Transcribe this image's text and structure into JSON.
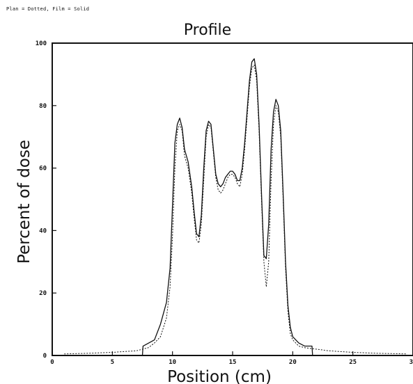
{
  "header_note": "Plan = Dotted, Film = Solid",
  "chart_data": {
    "type": "line",
    "title": "Profile",
    "xlabel": "Position (cm)",
    "ylabel": "Percent of dose",
    "xlim": [
      0,
      30
    ],
    "ylim": [
      0,
      100
    ],
    "x_ticks": [
      0,
      5,
      10,
      15,
      20,
      25,
      30
    ],
    "x_tick_labels": [
      "0",
      "5",
      "10",
      "15",
      "20",
      "25",
      "30"
    ],
    "y_ticks": [
      0,
      20,
      40,
      60,
      80,
      100
    ],
    "y_tick_labels": [
      "0",
      "20",
      "40",
      "60",
      "80",
      "100"
    ],
    "grid": false,
    "series": [
      {
        "style": "solid",
        "color": "#111111",
        "x": [
          7.5,
          7.55,
          8.5,
          9.0,
          9.5,
          9.8,
          10.0,
          10.2,
          10.4,
          10.6,
          10.8,
          11.0,
          11.3,
          11.6,
          11.8,
          12.0,
          12.2,
          12.4,
          12.6,
          12.8,
          13.0,
          13.2,
          13.4,
          13.6,
          13.8,
          14.0,
          14.2,
          14.4,
          14.6,
          14.8,
          15.0,
          15.2,
          15.4,
          15.6,
          15.8,
          16.0,
          16.2,
          16.4,
          16.6,
          16.8,
          17.0,
          17.2,
          17.4,
          17.6,
          17.8,
          18.0,
          18.2,
          18.4,
          18.6,
          18.8,
          19.0,
          19.2,
          19.4,
          19.6,
          19.8,
          20.0,
          20.5,
          21.0,
          21.6,
          21.65
        ],
        "y": [
          0,
          3,
          5,
          10,
          17,
          28,
          48,
          68,
          74,
          76,
          73,
          66,
          62,
          54,
          46,
          39,
          38,
          45,
          60,
          72,
          75,
          74,
          66,
          58,
          55,
          54,
          55,
          57,
          58,
          59,
          59,
          58,
          56,
          56,
          60,
          68,
          78,
          88,
          94,
          95,
          90,
          74,
          52,
          32,
          31,
          42,
          66,
          78,
          82,
          80,
          72,
          52,
          30,
          16,
          9,
          6,
          4,
          3,
          3,
          0
        ]
      },
      {
        "style": "dotted",
        "color": "#111111",
        "x": [
          1.0,
          3.0,
          5.0,
          7.0,
          8.0,
          8.5,
          9.0,
          9.5,
          9.8,
          10.0,
          10.2,
          10.4,
          10.6,
          10.8,
          11.0,
          11.3,
          11.6,
          11.8,
          12.0,
          12.2,
          12.4,
          12.6,
          12.8,
          13.0,
          13.2,
          13.4,
          13.6,
          13.8,
          14.0,
          14.2,
          14.4,
          14.6,
          14.8,
          15.0,
          15.2,
          15.4,
          15.6,
          15.8,
          16.0,
          16.2,
          16.4,
          16.6,
          16.8,
          17.0,
          17.2,
          17.4,
          17.6,
          17.8,
          18.0,
          18.2,
          18.4,
          18.6,
          18.8,
          19.0,
          19.2,
          19.4,
          19.6,
          19.8,
          20.0,
          20.5,
          21.0,
          22.0,
          23.0,
          25.0,
          27.0,
          29.5
        ],
        "y": [
          0.5,
          0.7,
          1.0,
          1.5,
          2.5,
          4,
          6,
          12,
          22,
          38,
          60,
          72,
          74,
          72,
          64,
          60,
          52,
          44,
          37,
          36,
          42,
          56,
          70,
          74,
          73,
          65,
          57,
          53,
          52,
          53,
          55,
          57,
          58,
          58,
          57,
          55,
          54,
          58,
          66,
          76,
          86,
          92,
          93,
          88,
          72,
          50,
          30,
          22,
          30,
          56,
          74,
          80,
          78,
          70,
          50,
          28,
          14,
          7,
          5,
          3,
          2.5,
          2,
          1.5,
          1,
          0.7,
          0.5
        ]
      }
    ]
  }
}
